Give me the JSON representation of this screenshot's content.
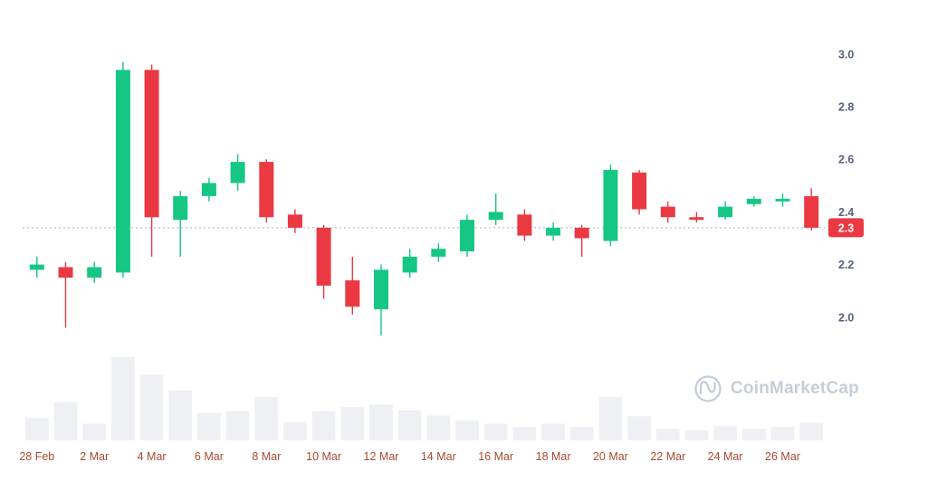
{
  "page": {
    "background": "#ffffff"
  },
  "watermark": {
    "label": "CoinMarketCap"
  },
  "chart_data": {
    "type": "candlestick",
    "title": "",
    "xlabel": "",
    "ylabel": "",
    "grid": false,
    "x_tick_labels": [
      "28 Feb",
      "2 Mar",
      "4 Mar",
      "6 Mar",
      "8 Mar",
      "10 Mar",
      "12 Mar",
      "14 Mar",
      "16 Mar",
      "18 Mar",
      "20 Mar",
      "22 Mar",
      "24 Mar",
      "26 Mar"
    ],
    "x_tick_every": 2,
    "y_ticks": [
      3.0,
      2.8,
      2.6,
      2.4,
      2.2,
      2.0
    ],
    "ylim": [
      1.9,
      3.02
    ],
    "current_price_label": "2.3",
    "current_price_value": 2.34,
    "colors": {
      "up": "#16c784",
      "down": "#ea3943",
      "volume_bar": "#eef0f4",
      "price_badge_bg": "#ea3943",
      "price_badge_text": "#ffffff",
      "price_line": "#a9b1bd",
      "y_label": "#56617a",
      "x_label": "#a84a32"
    },
    "candles": [
      {
        "date": "28 Feb",
        "o": 2.18,
        "h": 2.23,
        "l": 2.15,
        "c": 2.2,
        "v": 27
      },
      {
        "date": "1 Mar",
        "o": 2.19,
        "h": 2.21,
        "l": 1.96,
        "c": 2.15,
        "v": 46
      },
      {
        "date": "2 Mar",
        "o": 2.15,
        "h": 2.21,
        "l": 2.13,
        "c": 2.19,
        "v": 20
      },
      {
        "date": "3 Mar",
        "o": 2.17,
        "h": 2.97,
        "l": 2.15,
        "c": 2.94,
        "v": 100
      },
      {
        "date": "4 Mar",
        "o": 2.94,
        "h": 2.96,
        "l": 2.23,
        "c": 2.38,
        "v": 79
      },
      {
        "date": "5 Mar",
        "o": 2.37,
        "h": 2.48,
        "l": 2.23,
        "c": 2.46,
        "v": 60
      },
      {
        "date": "6 Mar",
        "o": 2.46,
        "h": 2.53,
        "l": 2.44,
        "c": 2.51,
        "v": 33
      },
      {
        "date": "7 Mar",
        "o": 2.51,
        "h": 2.62,
        "l": 2.48,
        "c": 2.59,
        "v": 35
      },
      {
        "date": "8 Mar",
        "o": 2.59,
        "h": 2.6,
        "l": 2.36,
        "c": 2.38,
        "v": 52
      },
      {
        "date": "9 Mar",
        "o": 2.39,
        "h": 2.41,
        "l": 2.32,
        "c": 2.34,
        "v": 22
      },
      {
        "date": "10 Mar",
        "o": 2.34,
        "h": 2.35,
        "l": 2.07,
        "c": 2.12,
        "v": 35
      },
      {
        "date": "11 Mar",
        "o": 2.14,
        "h": 2.23,
        "l": 2.01,
        "c": 2.04,
        "v": 40
      },
      {
        "date": "12 Mar",
        "o": 2.03,
        "h": 2.2,
        "l": 1.93,
        "c": 2.18,
        "v": 43
      },
      {
        "date": "13 Mar",
        "o": 2.17,
        "h": 2.26,
        "l": 2.15,
        "c": 2.23,
        "v": 36
      },
      {
        "date": "14 Mar",
        "o": 2.23,
        "h": 2.28,
        "l": 2.21,
        "c": 2.26,
        "v": 30
      },
      {
        "date": "15 Mar",
        "o": 2.25,
        "h": 2.39,
        "l": 2.23,
        "c": 2.37,
        "v": 24
      },
      {
        "date": "16 Mar",
        "o": 2.37,
        "h": 2.47,
        "l": 2.35,
        "c": 2.4,
        "v": 20
      },
      {
        "date": "17 Mar",
        "o": 2.39,
        "h": 2.41,
        "l": 2.29,
        "c": 2.31,
        "v": 16
      },
      {
        "date": "18 Mar",
        "o": 2.31,
        "h": 2.36,
        "l": 2.29,
        "c": 2.34,
        "v": 20
      },
      {
        "date": "19 Mar",
        "o": 2.34,
        "h": 2.35,
        "l": 2.23,
        "c": 2.3,
        "v": 16
      },
      {
        "date": "20 Mar",
        "o": 2.29,
        "h": 2.58,
        "l": 2.27,
        "c": 2.56,
        "v": 52
      },
      {
        "date": "21 Mar",
        "o": 2.55,
        "h": 2.56,
        "l": 2.39,
        "c": 2.41,
        "v": 29
      },
      {
        "date": "22 Mar",
        "o": 2.42,
        "h": 2.44,
        "l": 2.36,
        "c": 2.38,
        "v": 14
      },
      {
        "date": "23 Mar",
        "o": 2.38,
        "h": 2.4,
        "l": 2.36,
        "c": 2.37,
        "v": 12
      },
      {
        "date": "24 Mar",
        "o": 2.38,
        "h": 2.44,
        "l": 2.37,
        "c": 2.42,
        "v": 17
      },
      {
        "date": "25 Mar",
        "o": 2.43,
        "h": 2.46,
        "l": 2.42,
        "c": 2.45,
        "v": 14
      },
      {
        "date": "26 Mar",
        "o": 2.44,
        "h": 2.47,
        "l": 2.42,
        "c": 2.45,
        "v": 16
      },
      {
        "date": "27 Mar",
        "o": 2.46,
        "h": 2.49,
        "l": 2.33,
        "c": 2.34,
        "v": 21
      }
    ]
  }
}
